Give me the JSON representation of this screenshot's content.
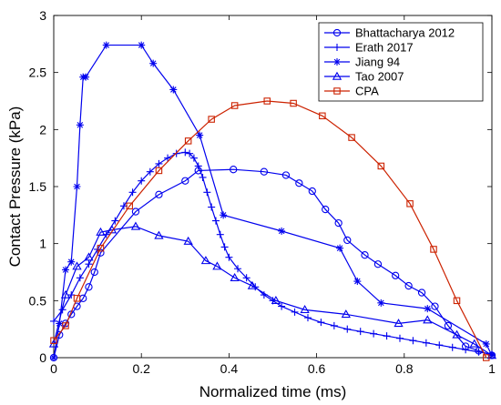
{
  "chart_data": {
    "type": "line",
    "title": "",
    "xlabel": "Normalized time (ms)",
    "ylabel": "Contact Pressure (kPa)",
    "xlim": [
      0,
      1
    ],
    "ylim": [
      0,
      3
    ],
    "xticks": [
      0,
      0.2,
      0.4,
      0.6,
      0.8,
      1
    ],
    "xtick_labels": [
      "0",
      "0.2",
      "0.4",
      "0.6",
      "0.8",
      "1"
    ],
    "yticks": [
      0,
      0.5,
      1,
      1.5,
      2,
      2.5,
      3
    ],
    "ytick_labels": [
      "0",
      "0.5",
      "1",
      "1.5",
      "2",
      "2.5",
      "3"
    ],
    "grid": false,
    "legend_position": "top-right",
    "series": [
      {
        "name": "Bhattacharya 2012",
        "color": "#0000ee",
        "marker": "circle",
        "x": [
          0,
          0.013,
          0.027,
          0.04,
          0.053,
          0.067,
          0.08,
          0.093,
          0.107,
          0.187,
          0.24,
          0.3,
          0.33,
          0.41,
          0.48,
          0.53,
          0.56,
          0.59,
          0.62,
          0.65,
          0.67,
          0.71,
          0.74,
          0.78,
          0.81,
          0.84,
          0.87,
          0.9,
          0.94,
          0.97,
          1.0
        ],
        "y": [
          0,
          0.2,
          0.3,
          0.38,
          0.45,
          0.52,
          0.62,
          0.75,
          0.92,
          1.28,
          1.43,
          1.55,
          1.64,
          1.65,
          1.63,
          1.6,
          1.53,
          1.46,
          1.3,
          1.18,
          1.03,
          0.9,
          0.82,
          0.72,
          0.63,
          0.57,
          0.45,
          0.28,
          0.1,
          0.06,
          0.02
        ]
      },
      {
        "name": "Erath 2017",
        "color": "#0000ee",
        "marker": "plus",
        "x": [
          0,
          0.02,
          0.04,
          0.06,
          0.08,
          0.1,
          0.12,
          0.14,
          0.16,
          0.18,
          0.2,
          0.22,
          0.24,
          0.26,
          0.28,
          0.3,
          0.31,
          0.32,
          0.33,
          0.34,
          0.35,
          0.36,
          0.37,
          0.38,
          0.39,
          0.4,
          0.42,
          0.44,
          0.46,
          0.48,
          0.5,
          0.52,
          0.55,
          0.58,
          0.61,
          0.64,
          0.67,
          0.7,
          0.73,
          0.76,
          0.79,
          0.82,
          0.85,
          0.88,
          0.91,
          0.94,
          0.97,
          1.0
        ],
        "y": [
          0.32,
          0.42,
          0.55,
          0.7,
          0.82,
          0.95,
          1.08,
          1.2,
          1.33,
          1.45,
          1.55,
          1.63,
          1.7,
          1.75,
          1.79,
          1.8,
          1.79,
          1.75,
          1.68,
          1.58,
          1.45,
          1.32,
          1.2,
          1.08,
          0.97,
          0.88,
          0.78,
          0.7,
          0.62,
          0.55,
          0.5,
          0.45,
          0.4,
          0.35,
          0.31,
          0.28,
          0.25,
          0.23,
          0.21,
          0.19,
          0.17,
          0.15,
          0.13,
          0.11,
          0.09,
          0.07,
          0.05,
          0.03
        ]
      },
      {
        "name": "Jiang 94",
        "color": "#0000ee",
        "marker": "asterisk",
        "x": [
          0,
          0.013,
          0.027,
          0.04,
          0.053,
          0.06,
          0.067,
          0.073,
          0.12,
          0.2,
          0.227,
          0.273,
          0.333,
          0.387,
          0.52,
          0.653,
          0.693,
          0.747,
          0.853,
          0.987,
          1.0
        ],
        "y": [
          0,
          0.3,
          0.77,
          0.84,
          1.5,
          2.04,
          2.46,
          2.46,
          2.74,
          2.74,
          2.58,
          2.35,
          1.95,
          1.25,
          1.11,
          0.96,
          0.67,
          0.48,
          0.43,
          0.12,
          0.02
        ]
      },
      {
        "name": "Tao 2007",
        "color": "#0000ee",
        "marker": "triangle",
        "x": [
          0,
          0.027,
          0.053,
          0.08,
          0.107,
          0.133,
          0.187,
          0.24,
          0.307,
          0.347,
          0.373,
          0.413,
          0.453,
          0.507,
          0.573,
          0.667,
          0.787,
          0.853,
          0.92,
          0.96,
          1.0
        ],
        "y": [
          0.12,
          0.55,
          0.8,
          0.88,
          1.1,
          1.12,
          1.15,
          1.07,
          1.02,
          0.85,
          0.8,
          0.7,
          0.63,
          0.5,
          0.42,
          0.38,
          0.3,
          0.33,
          0.2,
          0.12,
          0.02
        ]
      },
      {
        "name": "CPA",
        "color": "#cc2200",
        "marker": "square",
        "x": [
          0,
          0.027,
          0.053,
          0.107,
          0.173,
          0.24,
          0.307,
          0.36,
          0.413,
          0.487,
          0.547,
          0.613,
          0.68,
          0.747,
          0.813,
          0.867,
          0.92,
          0.987
        ],
        "y": [
          0.15,
          0.28,
          0.52,
          0.96,
          1.33,
          1.64,
          1.9,
          2.09,
          2.21,
          2.25,
          2.23,
          2.12,
          1.93,
          1.68,
          1.35,
          0.95,
          0.5,
          0.0
        ]
      }
    ]
  }
}
